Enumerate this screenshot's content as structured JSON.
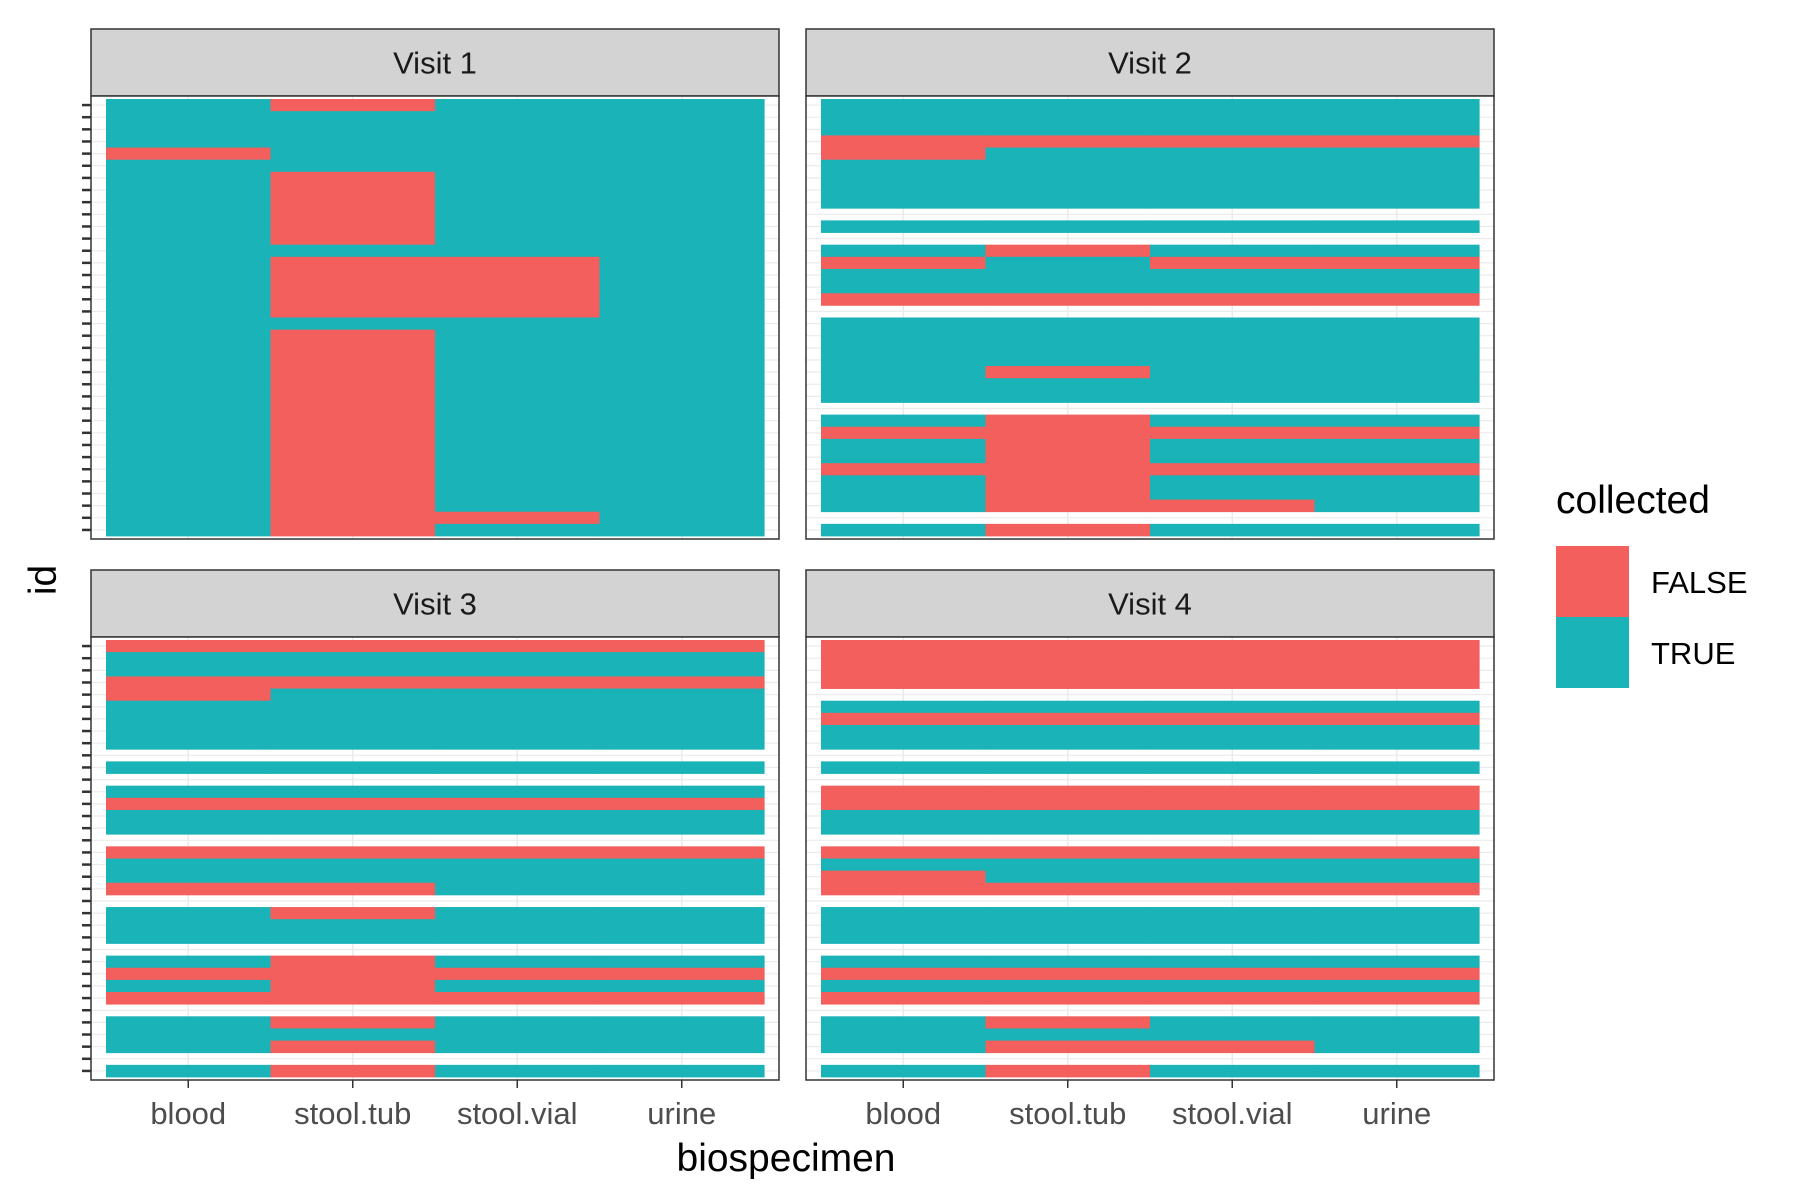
{
  "chart_data": {
    "type": "heatmap",
    "title": "",
    "xlabel": "biospecimen",
    "ylabel": "id",
    "categories": [
      "blood",
      "stool.tub",
      "stool.vial",
      "urine"
    ],
    "legend": {
      "title": "collected",
      "placement": "right",
      "entries": [
        {
          "label": "FALSE",
          "color": "#F25F5C"
        },
        {
          "label": "TRUE",
          "color": "#1AB3B7"
        }
      ]
    },
    "colors": {
      "FALSE": "#F25F5C",
      "TRUE": "#1AB3B7",
      "strip_bg": "#D3D3D3",
      "grid": "#EBEBEB"
    },
    "grid": true,
    "n_ids": 36,
    "panels": [
      {
        "title": "Visit 1",
        "absent_ids": [],
        "false_cells": [
          [
            0,
            [
              1
            ]
          ],
          [
            4,
            [
              0
            ]
          ],
          [
            6,
            [
              1
            ]
          ],
          [
            7,
            [
              1
            ]
          ],
          [
            8,
            [
              1
            ]
          ],
          [
            9,
            [
              1
            ]
          ],
          [
            10,
            [
              1
            ]
          ],
          [
            11,
            [
              1
            ]
          ],
          [
            13,
            [
              1,
              2
            ]
          ],
          [
            14,
            [
              1,
              2
            ]
          ],
          [
            15,
            [
              1,
              2
            ]
          ],
          [
            16,
            [
              1,
              2
            ]
          ],
          [
            17,
            [
              1,
              2
            ]
          ],
          [
            19,
            [
              1
            ]
          ],
          [
            20,
            [
              1
            ]
          ],
          [
            21,
            [
              1
            ]
          ],
          [
            22,
            [
              1
            ]
          ],
          [
            23,
            [
              1
            ]
          ],
          [
            24,
            [
              1
            ]
          ],
          [
            25,
            [
              1
            ]
          ],
          [
            26,
            [
              1
            ]
          ],
          [
            27,
            [
              1
            ]
          ],
          [
            28,
            [
              1
            ]
          ],
          [
            29,
            [
              1
            ]
          ],
          [
            30,
            [
              1
            ]
          ],
          [
            31,
            [
              1
            ]
          ],
          [
            32,
            [
              1
            ]
          ],
          [
            33,
            [
              1
            ]
          ],
          [
            34,
            [
              1,
              2
            ]
          ],
          [
            35,
            [
              1
            ]
          ]
        ]
      },
      {
        "title": "Visit 2",
        "absent_ids": [
          9,
          11,
          17,
          25,
          34
        ],
        "false_cells": [
          [
            3,
            [
              0,
              1,
              2,
              3
            ]
          ],
          [
            4,
            [
              0
            ]
          ],
          [
            12,
            [
              1
            ]
          ],
          [
            13,
            [
              0,
              2,
              3
            ]
          ],
          [
            16,
            [
              0,
              1,
              2,
              3
            ]
          ],
          [
            22,
            [
              1
            ]
          ],
          [
            26,
            [
              1
            ]
          ],
          [
            27,
            [
              0,
              1,
              2,
              3
            ]
          ],
          [
            28,
            [
              1
            ]
          ],
          [
            29,
            [
              1
            ]
          ],
          [
            30,
            [
              0,
              1,
              2,
              3
            ]
          ],
          [
            31,
            [
              1
            ]
          ],
          [
            32,
            [
              1
            ]
          ],
          [
            33,
            [
              1,
              2
            ]
          ],
          [
            35,
            [
              1
            ]
          ]
        ]
      },
      {
        "title": "Visit 3",
        "absent_ids": [
          9,
          11,
          16,
          21,
          25,
          30,
          34
        ],
        "false_cells": [
          [
            0,
            [
              0,
              1,
              2,
              3
            ]
          ],
          [
            3,
            [
              0,
              1,
              2,
              3
            ]
          ],
          [
            4,
            [
              0
            ]
          ],
          [
            13,
            [
              0,
              1,
              2,
              3
            ]
          ],
          [
            17,
            [
              0,
              1,
              2,
              3
            ]
          ],
          [
            20,
            [
              0,
              1
            ]
          ],
          [
            22,
            [
              1
            ]
          ],
          [
            26,
            [
              1
            ]
          ],
          [
            27,
            [
              0,
              1,
              2,
              3
            ]
          ],
          [
            28,
            [
              1
            ]
          ],
          [
            29,
            [
              0,
              1,
              2,
              3
            ]
          ],
          [
            31,
            [
              1
            ]
          ],
          [
            33,
            [
              1
            ]
          ],
          [
            35,
            [
              1
            ]
          ]
        ]
      },
      {
        "title": "Visit 4",
        "absent_ids": [
          4,
          9,
          11,
          16,
          21,
          25,
          30,
          34
        ],
        "false_cells": [
          [
            0,
            [
              0,
              1,
              2,
              3
            ]
          ],
          [
            1,
            [
              0,
              1,
              2,
              3
            ]
          ],
          [
            2,
            [
              0,
              1,
              2,
              3
            ]
          ],
          [
            3,
            [
              0,
              1,
              2,
              3
            ]
          ],
          [
            6,
            [
              0,
              1,
              2,
              3
            ]
          ],
          [
            12,
            [
              0,
              1,
              2,
              3
            ]
          ],
          [
            13,
            [
              0,
              1,
              2,
              3
            ]
          ],
          [
            17,
            [
              0,
              1,
              2,
              3
            ]
          ],
          [
            19,
            [
              0
            ]
          ],
          [
            20,
            [
              0,
              1,
              2,
              3
            ]
          ],
          [
            27,
            [
              0,
              1,
              2,
              3
            ]
          ],
          [
            29,
            [
              0,
              1,
              2,
              3
            ]
          ],
          [
            31,
            [
              1
            ]
          ],
          [
            33,
            [
              1,
              2
            ]
          ],
          [
            35,
            [
              1
            ]
          ]
        ]
      }
    ]
  }
}
